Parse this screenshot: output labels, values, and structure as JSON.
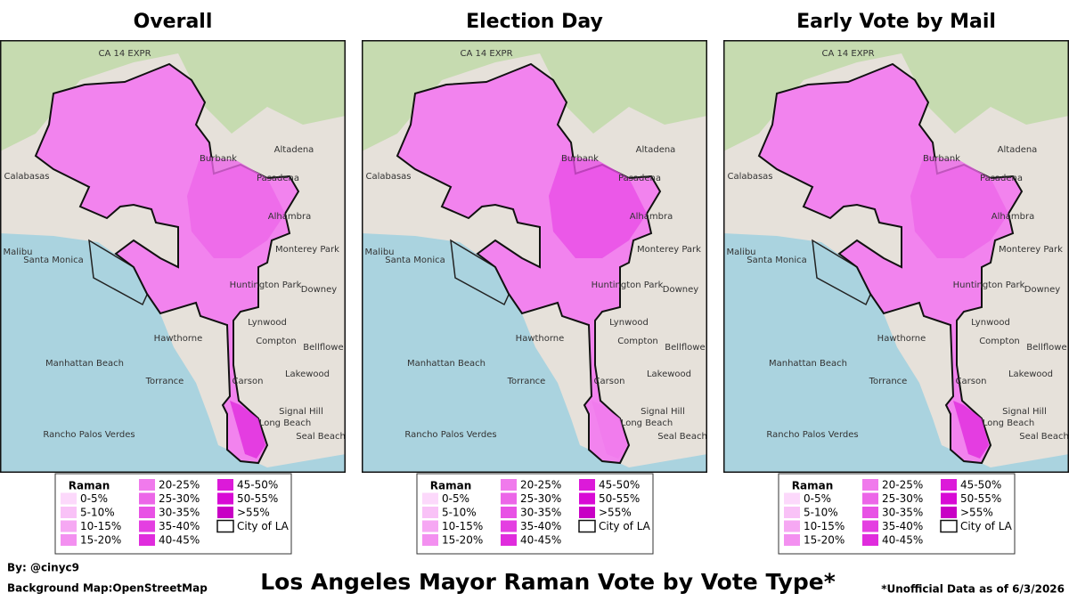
{
  "panels": [
    {
      "title": "Overall"
    },
    {
      "title": "Election Day"
    },
    {
      "title": "Early Vote by Mail"
    }
  ],
  "map_labels": [
    "CA 14 EXPR",
    "Burbank",
    "Altadena",
    "Pasadena",
    "Calabasas",
    "Alhambra",
    "Monterey Park",
    "Malibu",
    "Santa Monica",
    "Huntington Park",
    "Downey",
    "Lynwood",
    "Hawthorne",
    "Compton",
    "Manhattan Beach",
    "Bellflower",
    "Lakewood",
    "Torrance",
    "Carson",
    "Signal Hill",
    "Long Beach",
    "Rancho Palos Verdes",
    "Seal Beach"
  ],
  "legend": {
    "title": "Raman",
    "items": [
      {
        "label": "0-5%",
        "color": "#fcd9fb"
      },
      {
        "label": "5-10%",
        "color": "#f9c2f7"
      },
      {
        "label": "10-15%",
        "color": "#f6a8f3"
      },
      {
        "label": "15-20%",
        "color": "#f390f0"
      },
      {
        "label": "20-25%",
        "color": "#f07aec"
      },
      {
        "label": "25-30%",
        "color": "#ec66e8"
      },
      {
        "label": "30-35%",
        "color": "#e852e5"
      },
      {
        "label": "35-40%",
        "color": "#e43fe1"
      },
      {
        "label": "40-45%",
        "color": "#e02cdd"
      },
      {
        "label": "45-50%",
        "color": "#dc1ad9"
      },
      {
        "label": "50-55%",
        "color": "#d80ad5"
      },
      {
        "label": ">55%",
        "color": "#c800c5"
      },
      {
        "label": "City of LA",
        "color": "#ffffff"
      }
    ]
  },
  "footer": {
    "credit": "By: @cinyc9",
    "basemap": "Background Map:OpenStreetMap",
    "title": "Los Angeles Mayor Raman Vote by Vote Type*",
    "note": "*Unofficial Data as of 6/3/2026"
  }
}
